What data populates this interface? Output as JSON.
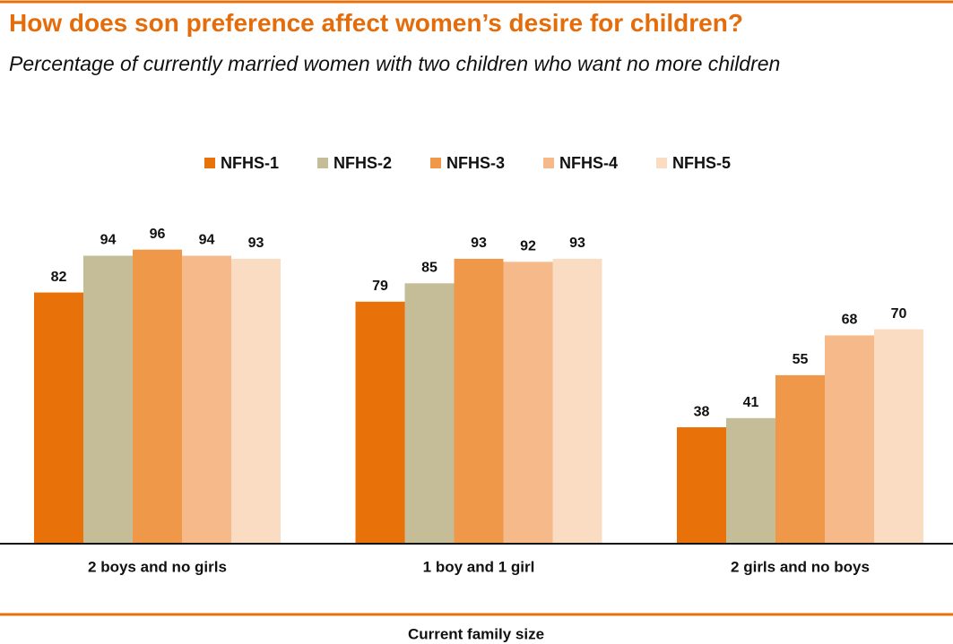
{
  "chart_data": {
    "type": "bar",
    "title": "How does son preference affect women’s desire for children?",
    "subtitle": "Percentage of currently married women with two children who want no more children",
    "x_label": "Current family size",
    "categories": [
      "2 boys and no girls",
      "1 boy and 1 girl",
      "2 girls and no boys"
    ],
    "series": [
      {
        "name": "NFHS-1",
        "color": "#e8710a",
        "values": [
          82,
          79,
          38
        ]
      },
      {
        "name": "NFHS-2",
        "color": "#c4bd97",
        "values": [
          94,
          85,
          41
        ]
      },
      {
        "name": "NFHS-3",
        "color": "#f0984a",
        "values": [
          96,
          93,
          55
        ]
      },
      {
        "name": "NFHS-4",
        "color": "#f5b98a",
        "values": [
          94,
          92,
          68
        ]
      },
      {
        "name": "NFHS-5",
        "color": "#fadcc2",
        "values": [
          93,
          93,
          70
        ]
      }
    ],
    "ylim": [
      0,
      100
    ],
    "legend": "top"
  }
}
